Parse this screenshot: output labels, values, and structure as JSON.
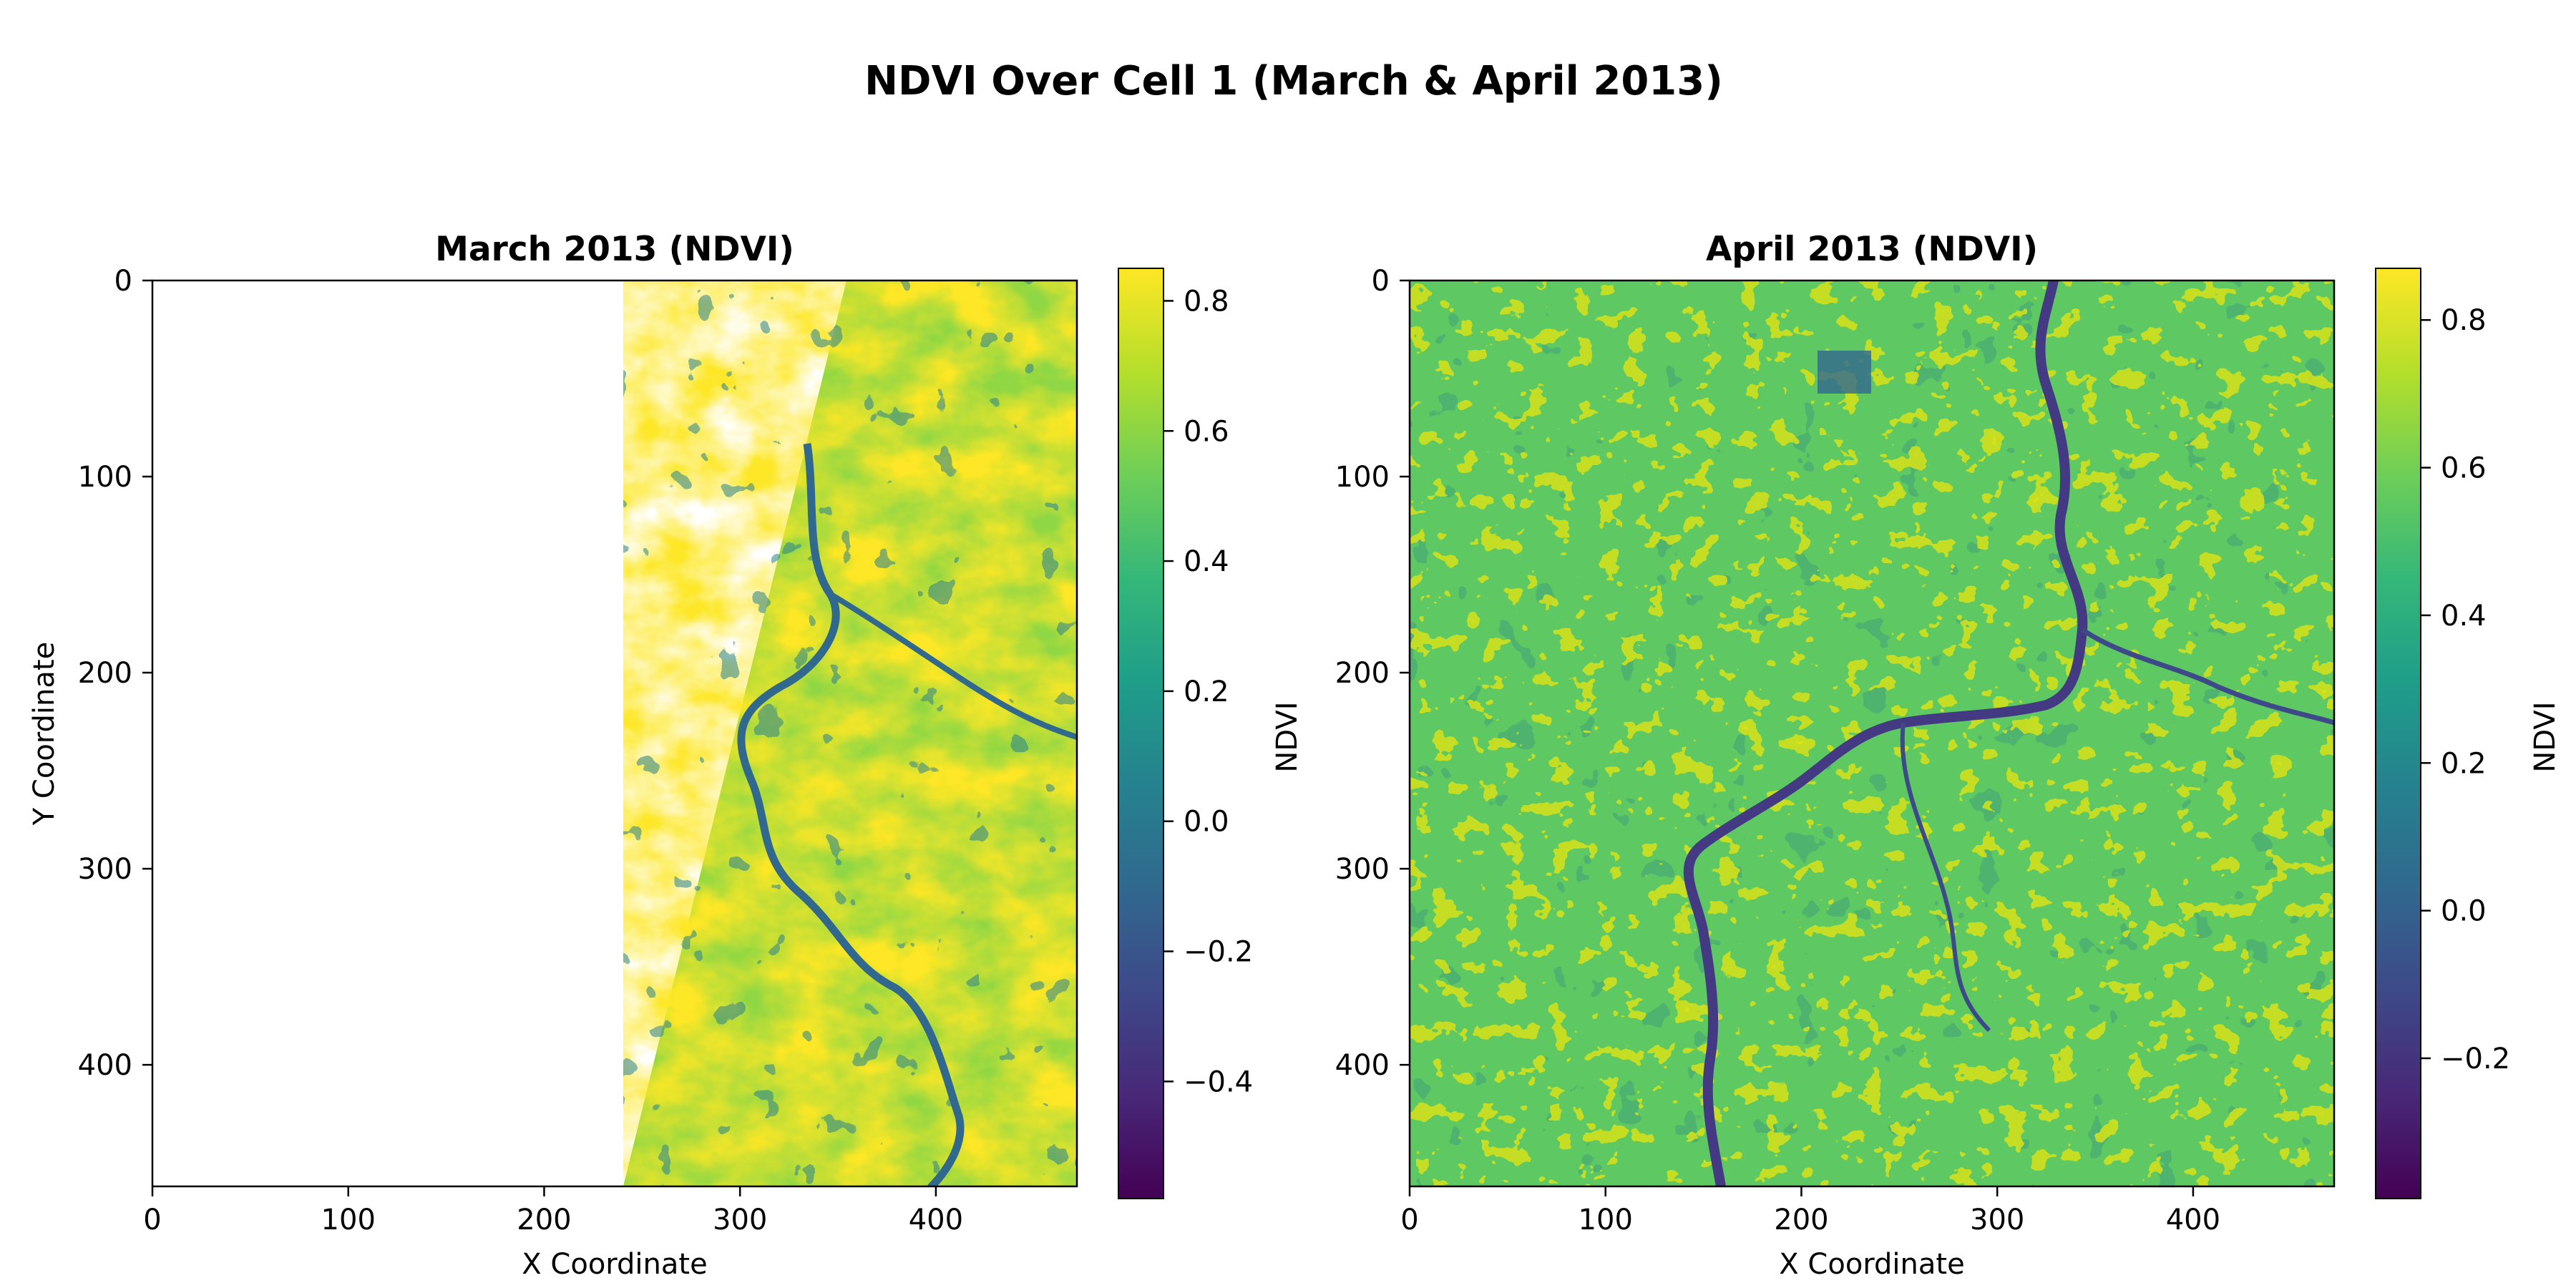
{
  "figure": {
    "suptitle": "NDVI Over Cell 1 (March & April 2013)"
  },
  "chart_data": [
    {
      "type": "heatmap",
      "title": "March 2013 (NDVI)",
      "xlabel": "X Coordinate",
      "ylabel": "Y Coordinate",
      "xlim": [
        0,
        472
      ],
      "ylim": [
        462,
        0
      ],
      "xticks": [
        0,
        100,
        200,
        300,
        400
      ],
      "yticks": [
        0,
        100,
        200,
        300,
        400
      ],
      "colormap": "viridis",
      "colorbar": {
        "label": "NDVI",
        "vmin": -0.58,
        "vmax": 0.85,
        "ticks": [
          -0.4,
          -0.2,
          0.0,
          0.2,
          0.4,
          0.6,
          0.8
        ],
        "tick_labels": [
          "−0.4",
          "−0.2",
          "0.0",
          "0.2",
          "0.4",
          "0.6",
          "0.8"
        ]
      },
      "nodata_region": "white wedge left of a diagonal swath edge from (355, 0) to (240, 462)",
      "swath_edge": [
        [
          355,
          0
        ],
        [
          240,
          462
        ]
      ],
      "features": [
        "river running north-south near x≈330-345",
        "high NDVI (~0.8) dominant to the east"
      ]
    },
    {
      "type": "heatmap",
      "title": "April 2013 (NDVI)",
      "xlabel": "X Coordinate",
      "ylabel": "",
      "xlim": [
        0,
        472
      ],
      "ylim": [
        462,
        0
      ],
      "xticks": [
        0,
        100,
        200,
        300,
        400
      ],
      "yticks": [
        0,
        100,
        200,
        300,
        400
      ],
      "colormap": "viridis",
      "colorbar": {
        "label": "NDVI",
        "vmin": -0.39,
        "vmax": 0.87,
        "ticks": [
          -0.2,
          0.0,
          0.2,
          0.4,
          0.6,
          0.8
        ],
        "tick_labels": [
          "−0.2",
          "0.0",
          "0.2",
          "0.4",
          "0.6",
          "0.8"
        ]
      },
      "features": [
        "river from top (~x 330) to bottom-left (~x 155)",
        "patchy fields of NDVI 0.3-0.8 across scene"
      ]
    }
  ],
  "colors": {
    "viridis": [
      "#440154",
      "#482878",
      "#3e4989",
      "#31688e",
      "#26828e",
      "#1f9e89",
      "#35b779",
      "#6ece58",
      "#b5de2b",
      "#fde725"
    ],
    "axis": "#000000",
    "background": "#ffffff"
  }
}
